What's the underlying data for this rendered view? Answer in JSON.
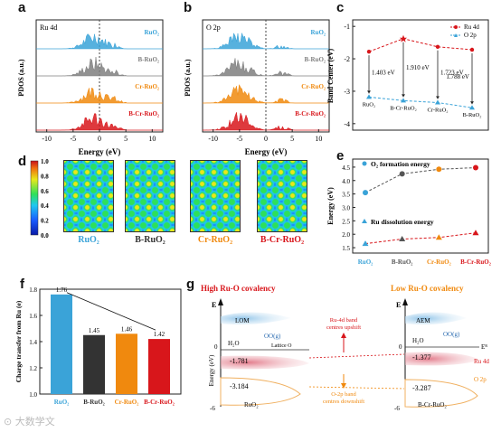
{
  "panels": {
    "a": {
      "label": "a",
      "orbital": "Ru 4d",
      "ylabel": "PDOS (a.u.)",
      "xlabel": "Energy (eV)",
      "xticks": [
        "-10",
        "-5",
        "0",
        "5",
        "10"
      ],
      "series": [
        {
          "name": "RuO₂",
          "color": "#3aa3d8"
        },
        {
          "name": "B-RuO₂",
          "color": "#7f7f7f"
        },
        {
          "name": "Cr-RuO₂",
          "color": "#f0890e"
        },
        {
          "name": "B-Cr-RuO₂",
          "color": "#d8161b"
        }
      ]
    },
    "b": {
      "label": "b",
      "orbital": "O 2p",
      "ylabel": "PDOS (a.u.)",
      "xlabel": "Energy (eV)",
      "xticks": [
        "-10",
        "-5",
        "0",
        "5",
        "10"
      ],
      "series": [
        {
          "name": "RuO₂",
          "color": "#3aa3d8"
        },
        {
          "name": "B-RuO₂",
          "color": "#7f7f7f"
        },
        {
          "name": "Cr-RuO₂",
          "color": "#f0890e"
        },
        {
          "name": "B-Cr-RuO₂",
          "color": "#d8161b"
        }
      ]
    },
    "c": {
      "label": "c",
      "ylabel": "Band Center (eV)",
      "legend": [
        "Ru 4d",
        "O 2p"
      ],
      "yticks": [
        "-1",
        "-2",
        "-3",
        "-4"
      ],
      "categories": [
        "RuO₂",
        "B-Cr-RuO₂",
        "Cr-RuO₂",
        "B-RuO₂"
      ],
      "gaps": [
        "1.403 eV",
        "1.910 eV",
        "1.723 eV",
        "1.788 eV"
      ]
    },
    "d": {
      "label": "d",
      "colorbar_ticks": [
        "1.0",
        "0.8",
        "0.6",
        "0.4",
        "0.2",
        "0.0"
      ],
      "titles": [
        {
          "text": "RuO₂",
          "color": "#3aa3d8"
        },
        {
          "text": "B-RuO₂",
          "color": "#333333"
        },
        {
          "text": "Cr-RuO₂",
          "color": "#f0890e"
        },
        {
          "text": "B-Cr-RuO₂",
          "color": "#d8161b"
        }
      ]
    },
    "e": {
      "label": "e",
      "ylabel": "Energy (eV)",
      "legend_top": "O₂ formation energy",
      "legend_bottom": "Ru dissolution energy",
      "yticks": [
        "4.5",
        "4.0",
        "3.5",
        "3.0",
        "2.5",
        "2.0",
        "1.5"
      ],
      "categories": [
        {
          "text": "RuO₂",
          "color": "#3aa3d8"
        },
        {
          "text": "B-RuO₂",
          "color": "#555555"
        },
        {
          "text": "Cr-RuO₂",
          "color": "#f0890e"
        },
        {
          "text": "B-Cr-RuO₂",
          "color": "#d8161b"
        }
      ]
    },
    "f": {
      "label": "f",
      "ylabel": "Charge transfer from Ru (e)",
      "yticks": [
        "1.8",
        "1.6",
        "1.4",
        "1.2",
        "1.0"
      ],
      "categories": [
        {
          "text": "RuO₂",
          "color": "#3aa3d8"
        },
        {
          "text": "B-RuO₂",
          "color": "#333333"
        },
        {
          "text": "Cr-RuO₂",
          "color": "#f0890e"
        },
        {
          "text": "B-Cr-RuO₂",
          "color": "#d8161b"
        }
      ],
      "value_labels": [
        "1.76",
        "1.45",
        "1.46",
        "1.42"
      ]
    },
    "g": {
      "label": "g",
      "left_title": "High Ru-O covalency",
      "right_title": "Low Ru-O covalency",
      "left_mech": "LOM",
      "right_mech": "AEM",
      "axis_E": "E",
      "axis_label": "Energy (eV)",
      "zero": "0",
      "bottom": "-6",
      "ef": "Eᴿ",
      "h2o": "H₂O",
      "oo": "OO(g)",
      "lattice": "Lattice O",
      "left_ed": "-1.781",
      "left_ep": "-3.184",
      "right_ed": "-1.377",
      "right_ep": "-3.287",
      "left_name": "RuO₂",
      "right_name": "B-Cr-RuO₂",
      "ru4d": "Ru 4d",
      "o2p": "O 2p",
      "up_text_1": "Ru-4d band",
      "up_text_2": "centres upshift",
      "down_text_1": "O-2p band",
      "down_text_2": "centres downshift"
    }
  },
  "chart_data": [
    {
      "type": "line",
      "title": "",
      "ylabel": "Band Center (eV)",
      "categories": [
        "RuO₂",
        "B-Cr-RuO₂",
        "Cr-RuO₂",
        "B-RuO₂"
      ],
      "ylim": [
        -4.2,
        -0.8
      ],
      "series": [
        {
          "name": "Ru 4d",
          "values": [
            -1.78,
            -1.38,
            -1.63,
            -1.72
          ]
        },
        {
          "name": "O 2p",
          "values": [
            -3.18,
            -3.29,
            -3.35,
            -3.51
          ]
        }
      ]
    },
    {
      "type": "line",
      "ylabel": "Energy (eV)",
      "categories": [
        "RuO₂",
        "B-RuO₂",
        "Cr-RuO₂",
        "B-Cr-RuO₂"
      ],
      "ylim": [
        1.3,
        4.8
      ],
      "series": [
        {
          "name": "O₂ formation energy",
          "values": [
            3.55,
            4.25,
            4.42,
            4.48
          ]
        },
        {
          "name": "Ru dissolution energy",
          "values": [
            1.65,
            1.82,
            1.88,
            2.05
          ]
        }
      ]
    },
    {
      "type": "bar",
      "ylabel": "Charge transfer from Ru (e)",
      "categories": [
        "RuO₂",
        "B-RuO₂",
        "Cr-RuO₂",
        "B-Cr-RuO₂"
      ],
      "values": [
        1.76,
        1.45,
        1.46,
        1.42
      ],
      "ylim": [
        1.0,
        1.8
      ]
    }
  ],
  "watermark": "⊙ 大数学文"
}
